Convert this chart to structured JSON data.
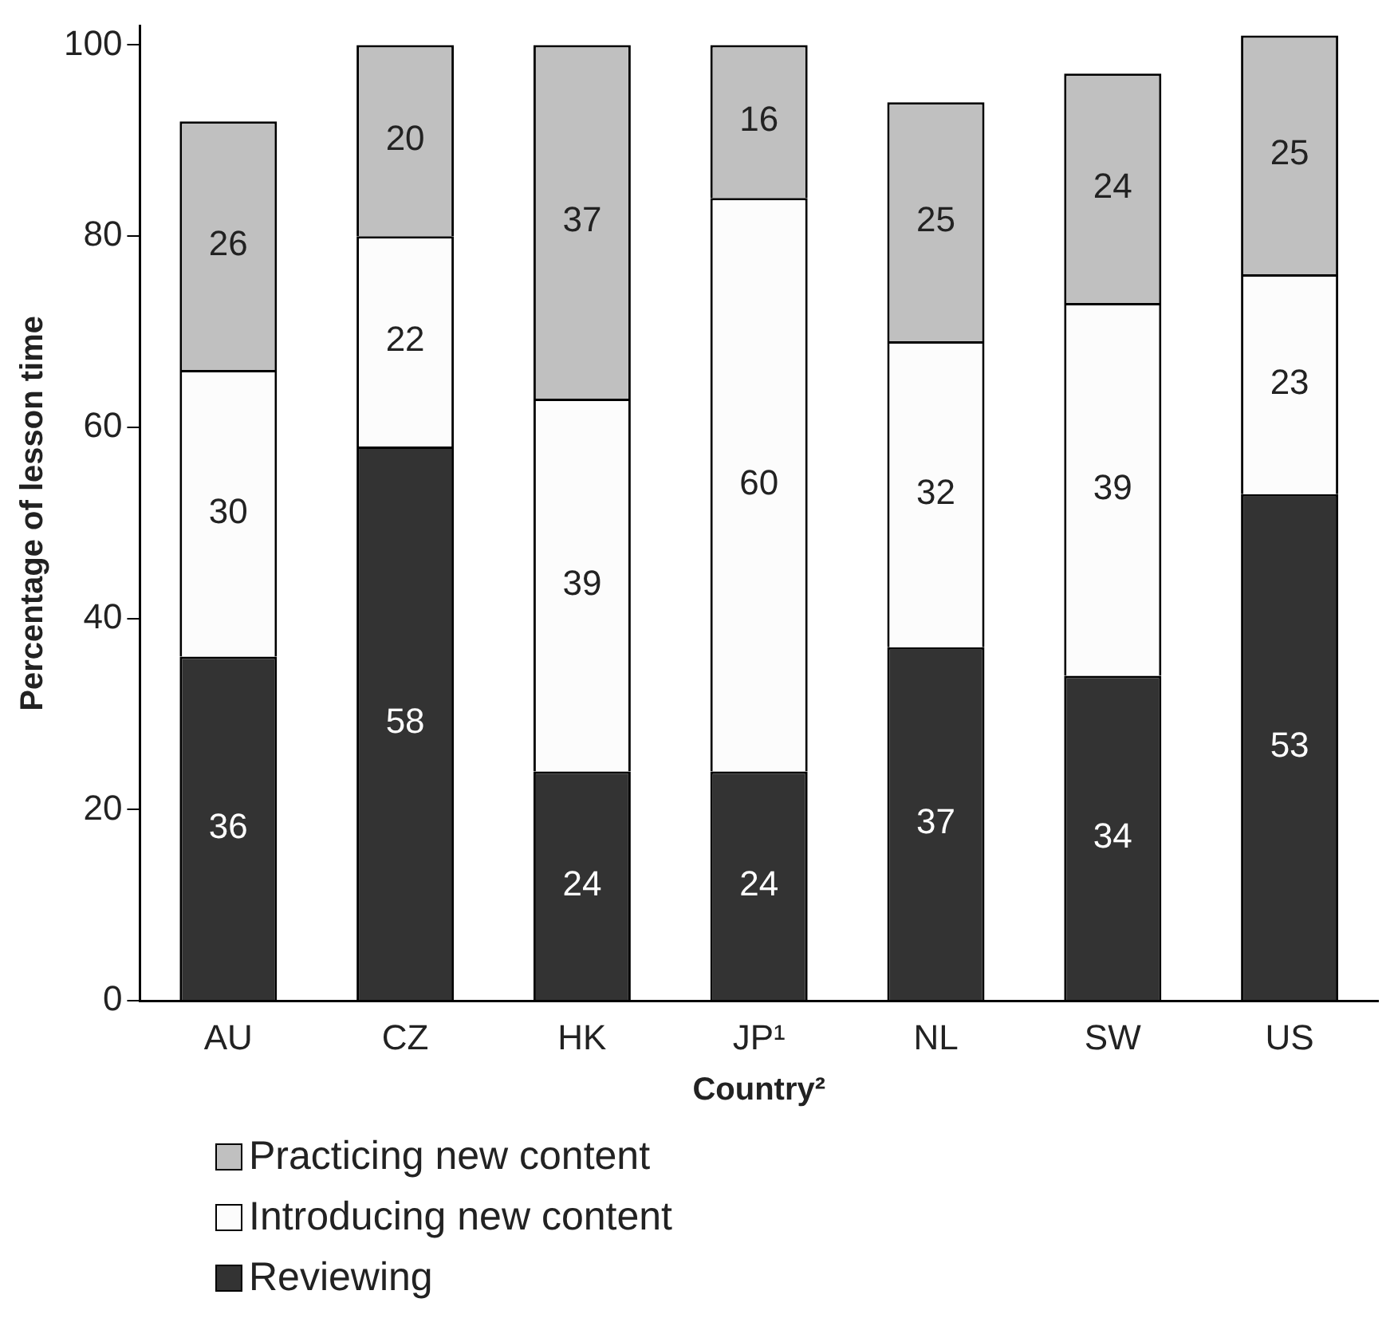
{
  "chart_data": {
    "type": "bar",
    "stacked": true,
    "xlabel": "Country²",
    "ylabel": "Percentage of lesson time",
    "categories": [
      "AU",
      "CZ",
      "HK",
      "JP¹",
      "NL",
      "SW",
      "US"
    ],
    "series": [
      {
        "name": "Reviewing",
        "color": "#333333",
        "values": [
          36,
          58,
          24,
          24,
          37,
          34,
          53
        ]
      },
      {
        "name": "Introducing new content",
        "color": "#fcfcfc",
        "values": [
          30,
          22,
          39,
          60,
          32,
          39,
          23
        ]
      },
      {
        "name": "Practicing new content",
        "color": "#c0c0c0",
        "values": [
          26,
          20,
          37,
          16,
          25,
          24,
          25
        ]
      }
    ],
    "ylim": [
      0,
      102
    ],
    "yticks": [
      0,
      20,
      40,
      60,
      80,
      100
    ],
    "grid": false,
    "legend": "bottom",
    "data_labels": true
  }
}
